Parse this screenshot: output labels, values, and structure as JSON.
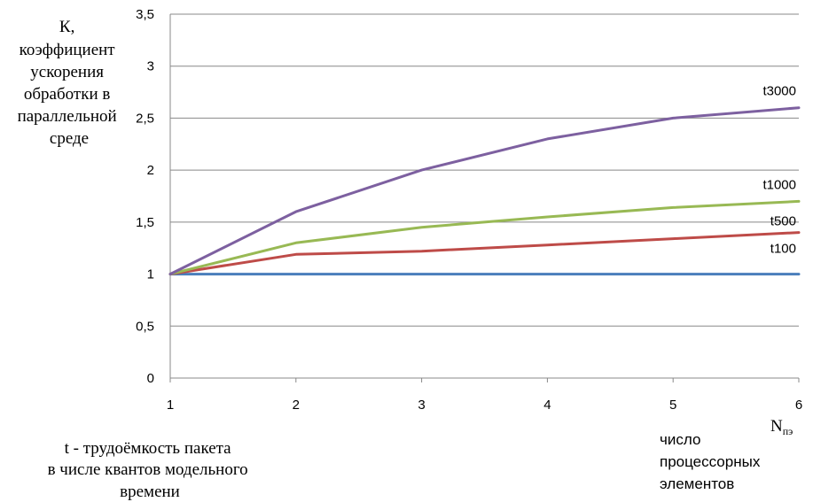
{
  "chart_data": {
    "type": "line",
    "x": [
      1,
      2,
      3,
      4,
      5,
      6
    ],
    "xlim": [
      1,
      6
    ],
    "ylim": [
      0,
      3.5
    ],
    "y_ticks": [
      "0",
      "0,5",
      "1",
      "1,5",
      "2",
      "2,5",
      "3",
      "3,5"
    ],
    "x_ticks": [
      "1",
      "2",
      "3",
      "4",
      "5",
      "6"
    ],
    "grid": "horizontal",
    "ylabel_lines": [
      "К,",
      "коэффициент",
      "ускорения",
      "обработки в",
      "параллельной",
      "среде"
    ],
    "x_axis_symbol": {
      "main": "N",
      "sub": "пэ"
    },
    "xlabel_lines": [
      "число",
      "процессорных",
      "элементов"
    ],
    "note_lines": [
      "t - трудоёмкость пакета",
      "в числе квантов модельного",
      "времени"
    ],
    "series": [
      {
        "name": "t100",
        "color": "#4a7ebb",
        "values": [
          1,
          1,
          1,
          1,
          1,
          1
        ]
      },
      {
        "name": "t500",
        "color": "#be4b48",
        "values": [
          1,
          1.19,
          1.22,
          1.28,
          1.34,
          1.4
        ]
      },
      {
        "name": "t1000",
        "color": "#98b954",
        "values": [
          1,
          1.3,
          1.45,
          1.55,
          1.64,
          1.7
        ]
      },
      {
        "name": "t3000",
        "color": "#7d60a0",
        "values": [
          1,
          1.6,
          2.0,
          2.3,
          2.5,
          2.6
        ]
      }
    ]
  }
}
